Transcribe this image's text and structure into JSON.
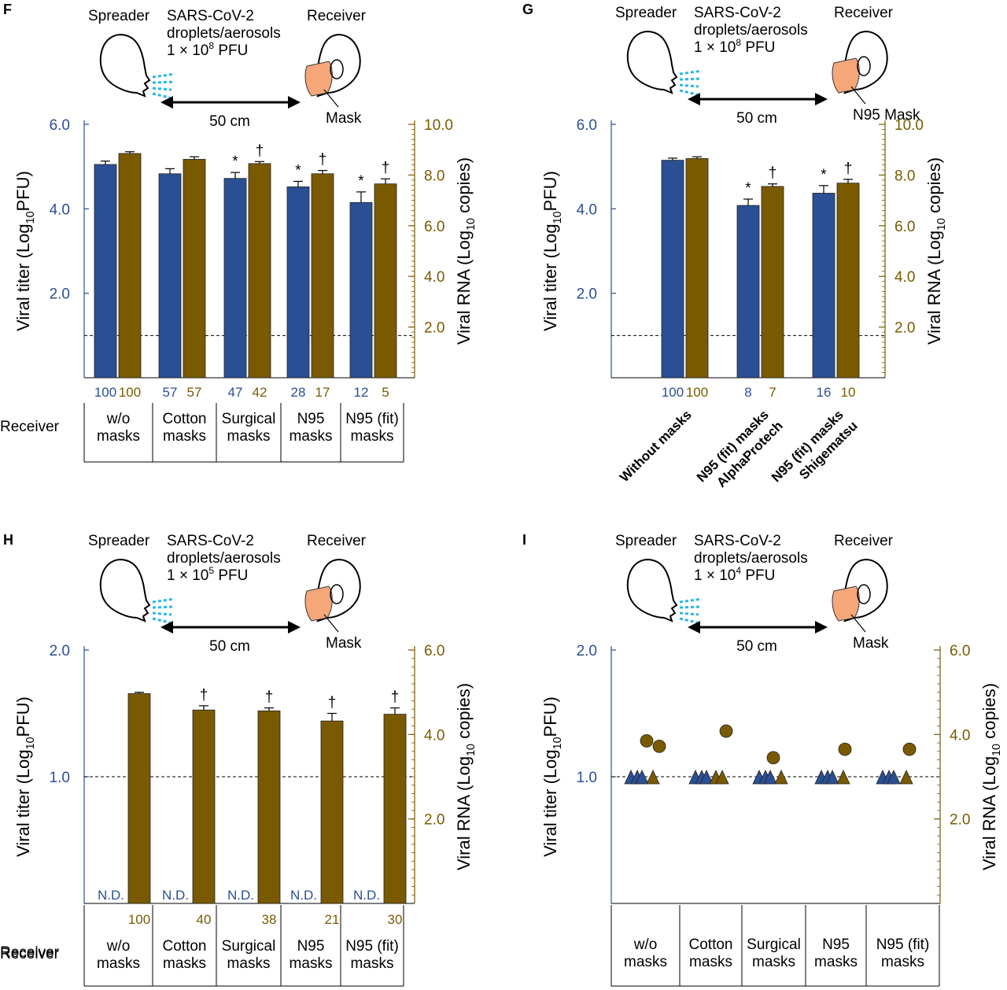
{
  "colors": {
    "titer": "#2b4f94",
    "rna": "#7a5a00",
    "aerosol": "#29b6e8",
    "mask": "#f5a77a"
  },
  "panels": [
    {
      "letter": "F",
      "diagram": {
        "spreader": "Spreader",
        "virus_line1": "SARS-CoV-2",
        "virus_line2": "droplets/aerosols",
        "dose_prefix": "1",
        "dose_base": "10",
        "dose_exp": "8",
        "dose_unit": "PFU",
        "receiver": "Receiver",
        "distance": "50 cm",
        "mask_label": "Mask"
      },
      "row_label": "Receiver",
      "categories": [
        {
          "line1": "w/o",
          "line2": "masks",
          "titer_pct": "100",
          "rna_pct": "100"
        },
        {
          "line1": "Cotton",
          "line2": "masks",
          "titer_pct": "57",
          "rna_pct": "57"
        },
        {
          "line1": "Surgical",
          "line2": "masks",
          "titer_pct": "47",
          "rna_pct": "42"
        },
        {
          "line1": "N95",
          "line2": "masks",
          "titer_pct": "28",
          "rna_pct": "17"
        },
        {
          "line1": "N95 (fit)",
          "line2": "masks",
          "titer_pct": "12",
          "rna_pct": "5"
        }
      ]
    },
    {
      "letter": "G",
      "diagram": {
        "spreader": "Spreader",
        "virus_line1": "SARS-CoV-2",
        "virus_line2": "droplets/aerosols",
        "dose_prefix": "1",
        "dose_base": "10",
        "dose_exp": "8",
        "dose_unit": "PFU",
        "receiver": "Receiver",
        "distance": "50 cm",
        "mask_label": "N95 Mask"
      },
      "categories": [
        {
          "line1": "Without masks",
          "line2": "",
          "titer_pct": "100",
          "rna_pct": "100"
        },
        {
          "line1": "N95 (fit) masks",
          "line2": "AlphaProtech",
          "titer_pct": "8",
          "rna_pct": "7"
        },
        {
          "line1": "N95 (fit) masks",
          "line2": "Shigematsu",
          "titer_pct": "16",
          "rna_pct": "10"
        }
      ]
    },
    {
      "letter": "H",
      "diagram": {
        "spreader": "Spreader",
        "virus_line1": "SARS-CoV-2",
        "virus_line2": "droplets/aerosols",
        "dose_prefix": "1",
        "dose_base": "10",
        "dose_exp": "5",
        "dose_unit": "PFU",
        "receiver": "Receiver",
        "distance": "50 cm",
        "mask_label": "Mask"
      },
      "row_label": "Receiver",
      "nd_label": "N.D.",
      "categories": [
        {
          "line1": "w/o",
          "line2": "masks",
          "rna_pct": "100"
        },
        {
          "line1": "Cotton",
          "line2": "masks",
          "rna_pct": "40"
        },
        {
          "line1": "Surgical",
          "line2": "masks",
          "rna_pct": "38"
        },
        {
          "line1": "N95",
          "line2": "masks",
          "rna_pct": "21"
        },
        {
          "line1": "N95 (fit)",
          "line2": "masks",
          "rna_pct": "30"
        }
      ]
    },
    {
      "letter": "I",
      "diagram": {
        "spreader": "Spreader",
        "virus_line1": "SARS-CoV-2",
        "virus_line2": "droplets/aerosols",
        "dose_prefix": "1",
        "dose_base": "10",
        "dose_exp": "4",
        "dose_unit": "PFU",
        "receiver": "Receiver",
        "distance": "50 cm",
        "mask_label": "Mask"
      },
      "row_label": "Receiver",
      "categories": [
        {
          "line1": "w/o",
          "line2": "masks"
        },
        {
          "line1": "Cotton",
          "line2": "masks"
        },
        {
          "line1": "Surgical",
          "line2": "masks"
        },
        {
          "line1": "N95",
          "line2": "masks"
        },
        {
          "line1": "N95 (fit)",
          "line2": "masks"
        }
      ]
    }
  ],
  "chart_data": [
    {
      "panel": "F",
      "type": "bar",
      "categories": [
        "w/o masks",
        "Cotton masks",
        "Surgical masks",
        "N95 masks",
        "N95 (fit) masks"
      ],
      "ylabel_left": {
        "prefix": "Viral titer (Log",
        "sub": "10",
        "suffix": "PFU)"
      },
      "ylabel_right": {
        "prefix": "Viral RNA (Log",
        "sub": "10",
        "suffix": " copies)"
      },
      "ylim_left": [
        0,
        6.0
      ],
      "yticks_left": [
        "2.0",
        "4.0",
        "6.0"
      ],
      "ylim_right": [
        0,
        10.0
      ],
      "yticks_right": [
        "2.0",
        "4.0",
        "6.0",
        "8.0",
        "10.0"
      ],
      "detection_limit": 1.0,
      "series": [
        {
          "axis": "left",
          "values": [
            5.05,
            4.83,
            4.72,
            4.52,
            4.15
          ],
          "errors": [
            0.08,
            0.12,
            0.14,
            0.13,
            0.25
          ],
          "markers": [
            "",
            "",
            "*",
            "*",
            "*"
          ]
        },
        {
          "axis": "right",
          "values": [
            8.85,
            8.62,
            8.45,
            8.05,
            7.65
          ],
          "errors": [
            0.07,
            0.1,
            0.08,
            0.13,
            0.2
          ],
          "markers": [
            "",
            "",
            "†",
            "†",
            "†"
          ]
        }
      ]
    },
    {
      "panel": "G",
      "type": "bar",
      "categories": [
        "Without masks",
        "N95 (fit) masks AlphaProtech",
        "N95 (fit) masks Shigematsu"
      ],
      "ylabel_left": {
        "prefix": "Viral titer (Log",
        "sub": "10",
        "suffix": "PFU)"
      },
      "ylabel_right": {
        "prefix": "Viral RNA (Log",
        "sub": "10",
        "suffix": " copies)"
      },
      "ylim_left": [
        0,
        6.0
      ],
      "yticks_left": [
        "2.0",
        "4.0",
        "6.0"
      ],
      "ylim_right": [
        0,
        10.0
      ],
      "yticks_right": [
        "2.0",
        "4.0",
        "6.0",
        "8.0",
        "10.0"
      ],
      "detection_limit": 1.0,
      "series": [
        {
          "axis": "left",
          "values": [
            5.15,
            4.08,
            4.37
          ],
          "errors": [
            0.05,
            0.15,
            0.18
          ],
          "markers": [
            "",
            "*",
            "*"
          ]
        },
        {
          "axis": "right",
          "values": [
            8.65,
            7.55,
            7.68
          ],
          "errors": [
            0.07,
            0.1,
            0.15
          ],
          "markers": [
            "",
            "†",
            "†"
          ]
        }
      ]
    },
    {
      "panel": "H",
      "type": "bar",
      "categories": [
        "w/o masks",
        "Cotton masks",
        "Surgical masks",
        "N95 masks",
        "N95 (fit) masks"
      ],
      "ylabel_left": {
        "prefix": "Viral titer (Log",
        "sub": "10",
        "suffix": "PFU)"
      },
      "ylabel_right": {
        "prefix": "Viral RNA (Log",
        "sub": "10",
        "suffix": " copies)"
      },
      "ylim_left": [
        0,
        2.0
      ],
      "yticks_left": [
        "1.0",
        "2.0"
      ],
      "ylim_right": [
        0,
        6.0
      ],
      "yticks_right": [
        "2.0",
        "4.0",
        "6.0"
      ],
      "detection_limit": 1.0,
      "series": [
        {
          "axis": "right",
          "values": [
            4.97,
            4.58,
            4.56,
            4.32,
            4.48
          ],
          "errors": [
            0.03,
            0.1,
            0.07,
            0.18,
            0.15
          ],
          "markers": [
            "",
            "†",
            "†",
            "†",
            "†"
          ]
        }
      ]
    },
    {
      "panel": "I",
      "type": "scatter",
      "categories": [
        "w/o masks",
        "Cotton masks",
        "Surgical masks",
        "N95 masks",
        "N95 (fit) masks"
      ],
      "ylabel_left": {
        "prefix": "Viral titer (Log",
        "sub": "10",
        "suffix": "PFU)"
      },
      "ylabel_right": {
        "prefix": "Viral RNA (Log",
        "sub": "10",
        "suffix": " copies)"
      },
      "ylim_left": [
        0,
        2.0
      ],
      "yticks_left": [
        "1.0",
        "2.0"
      ],
      "ylim_right": [
        0,
        6.0
      ],
      "yticks_right": [
        "2.0",
        "4.0",
        "6.0"
      ],
      "detection_limit": 1.0,
      "series": [
        {
          "marker": "triangle",
          "axis": "left",
          "points": [
            [
              0,
              1.0
            ],
            [
              0,
              1.0
            ],
            [
              0,
              1.0
            ],
            [
              1,
              1.0
            ],
            [
              1,
              1.0
            ],
            [
              1,
              1.0
            ],
            [
              2,
              1.0
            ],
            [
              2,
              1.0
            ],
            [
              2,
              1.0
            ],
            [
              3,
              1.0
            ],
            [
              3,
              1.0
            ],
            [
              3,
              1.0
            ],
            [
              4,
              1.0
            ],
            [
              4,
              1.0
            ],
            [
              4,
              1.0
            ]
          ]
        },
        {
          "marker": "triangle",
          "axis": "left",
          "points": [
            [
              0,
              1.0
            ],
            [
              1,
              1.0
            ],
            [
              1,
              1.0
            ],
            [
              2,
              1.0
            ],
            [
              3,
              1.0
            ],
            [
              4,
              1.0
            ]
          ]
        },
        {
          "marker": "circle",
          "axis": "right",
          "points": [
            [
              0,
              3.85
            ],
            [
              0,
              3.72
            ],
            [
              1,
              4.08
            ],
            [
              2,
              3.45
            ],
            [
              3,
              3.65
            ],
            [
              4,
              3.65
            ]
          ]
        }
      ]
    }
  ]
}
